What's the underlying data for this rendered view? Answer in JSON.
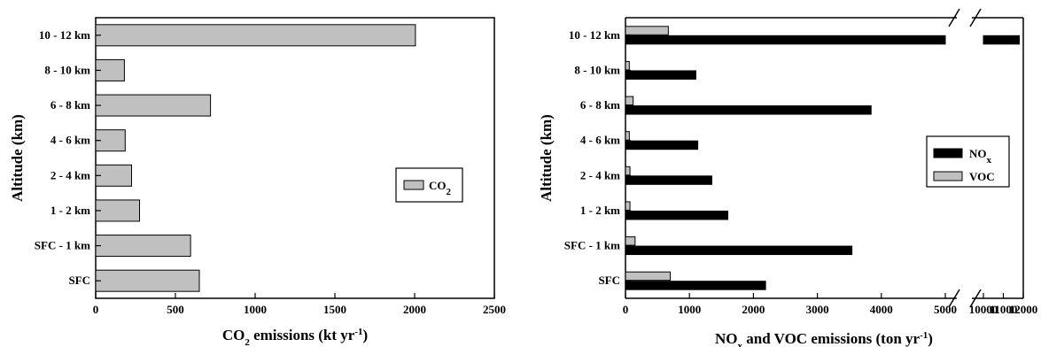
{
  "chart_data": [
    {
      "type": "bar",
      "orientation": "horizontal",
      "categories": [
        "SFC",
        "SFC - 1 km",
        "1 - 2 km",
        "2 - 4 km",
        "4 - 6 km",
        "6 - 8 km",
        "8 - 10 km",
        "10 - 12 km"
      ],
      "series": [
        {
          "name": "CO2",
          "color": "#c0c0c0",
          "values": [
            650,
            595,
            275,
            225,
            185,
            720,
            180,
            2005
          ]
        }
      ],
      "xlim": [
        0,
        2500
      ],
      "xticks": [
        "0",
        "500",
        "1000",
        "1500",
        "2000",
        "2500"
      ],
      "xlabel": {
        "pre": "CO",
        "sub": "2",
        "post": " emissions (kt yr",
        "sup": "-1",
        "end": ")"
      },
      "ylabel": "Altitude (km)",
      "legend": {
        "position": "right",
        "entries": [
          {
            "pre": "CO",
            "sub": "2",
            "color": "#c0c0c0"
          }
        ]
      }
    },
    {
      "type": "bar",
      "orientation": "horizontal",
      "categories": [
        "SFC",
        "SFC - 1 km",
        "1 - 2 km",
        "2 - 4 km",
        "4 - 6 km",
        "6 - 8 km",
        "8 - 10 km",
        "10 - 12 km"
      ],
      "series": [
        {
          "name": "NOx",
          "color": "#000000",
          "values": [
            2190,
            3540,
            1600,
            1350,
            1130,
            3840,
            1100,
            11800
          ]
        },
        {
          "name": "VOC",
          "color": "#c0c0c0",
          "values": [
            700,
            150,
            70,
            70,
            60,
            120,
            60,
            670
          ]
        }
      ],
      "axis_break": [
        5000,
        10000
      ],
      "xlim": [
        0,
        12000
      ],
      "xticks": [
        "0",
        "1000",
        "2000",
        "3000",
        "4000",
        "5000",
        "10000",
        "11000",
        "12000"
      ],
      "xlabel": {
        "pre": "NO",
        "sub": "x",
        "post": " and VOC emissions (ton yr",
        "sup": "-1",
        "end": ")"
      },
      "ylabel": "Altitude (km)",
      "legend": {
        "position": "right",
        "entries": [
          {
            "pre": "NO",
            "sub": "x",
            "color": "#000000"
          },
          {
            "pre": "VOC",
            "sub": "",
            "color": "#c0c0c0"
          }
        ]
      }
    }
  ]
}
